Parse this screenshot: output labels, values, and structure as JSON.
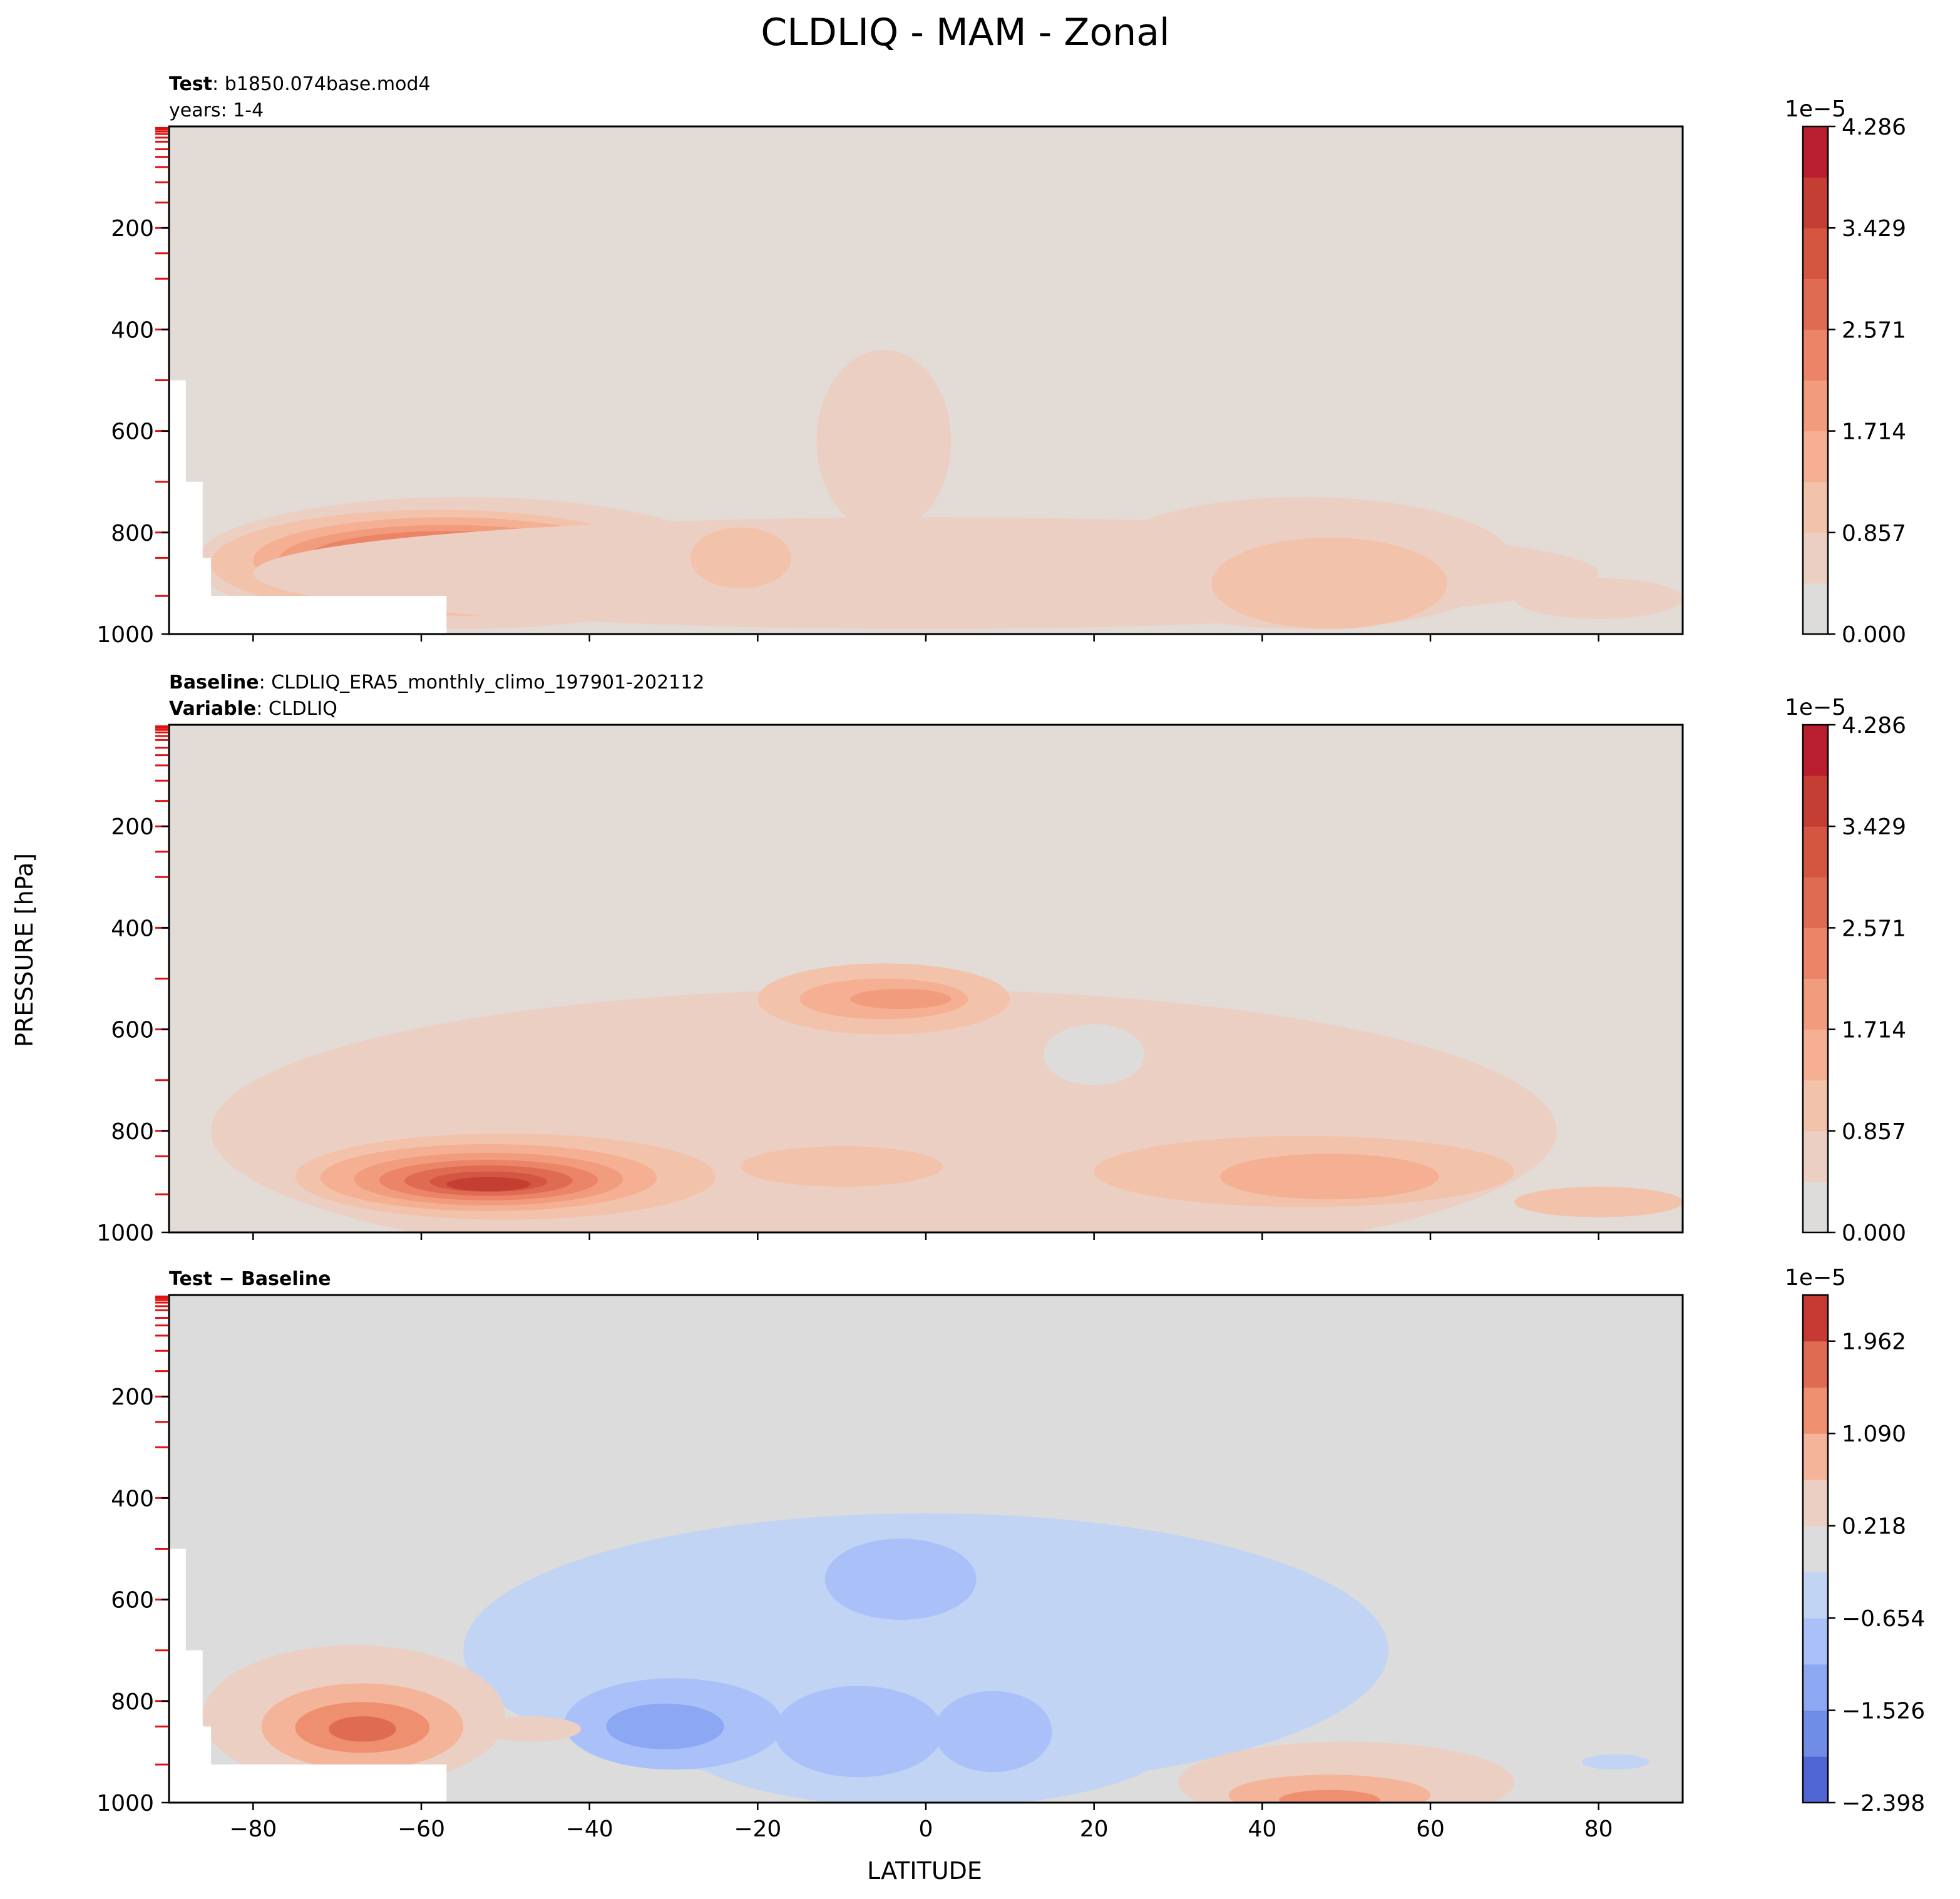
{
  "figure": {
    "suptitle": "CLDLIQ - MAM - Zonal",
    "ylabel": "PRESSURE [hPa]",
    "xlabel": "LATITUDE"
  },
  "chart_data": [
    {
      "type": "contour",
      "panel": "test",
      "subtitle_lines": [
        {
          "bold": "Test",
          "sep": ": ",
          "text": "b1850.074base.mod4"
        },
        {
          "bold": "",
          "sep": "",
          "text": "years: 1-4"
        }
      ],
      "xlim": [
        -90,
        90
      ],
      "ylim": [
        1000,
        0
      ],
      "xticks": [
        -80,
        -60,
        -40,
        -20,
        0,
        20,
        40,
        60,
        80
      ],
      "yticks": [
        200,
        400,
        600,
        800,
        1000
      ],
      "show_xtick_labels": false,
      "colorbar": {
        "multiplier": "1e−5",
        "levels": 12,
        "ticks": [
          "0.000",
          "0.857",
          "1.714",
          "2.571",
          "3.429",
          "4.286"
        ],
        "colors": [
          "#dedcda",
          "#eccfc3",
          "#f3c2ab",
          "#f5b094",
          "#f29c7e",
          "#ec8467",
          "#e06b53",
          "#d45540",
          "#c43e33",
          "#b81e2e"
        ]
      },
      "background": "#e2dbd6",
      "missing_region": [
        [
          -90,
          500
        ],
        [
          -88,
          500
        ],
        [
          -88,
          700
        ],
        [
          -86,
          700
        ],
        [
          -86,
          850
        ],
        [
          -85,
          850
        ],
        [
          -85,
          925
        ],
        [
          -57,
          925
        ],
        [
          -57,
          1000
        ],
        [
          -90,
          1000
        ]
      ],
      "blobs": [
        {
          "lat": -55,
          "p": 860,
          "dlat": 32,
          "dp": 130,
          "level": 1
        },
        {
          "lat": -58,
          "p": 860,
          "dlat": 27,
          "dp": 105,
          "level": 2
        },
        {
          "lat": -57,
          "p": 855,
          "dlat": 23,
          "dp": 85,
          "level": 3
        },
        {
          "lat": -57,
          "p": 855,
          "dlat": 20,
          "dp": 70,
          "level": 4
        },
        {
          "lat": -57,
          "p": 855,
          "dlat": 17,
          "dp": 58,
          "level": 5
        },
        {
          "lat": -57,
          "p": 855,
          "dlat": 14,
          "dp": 46,
          "level": 6
        },
        {
          "lat": -56,
          "p": 855,
          "dlat": 11,
          "dp": 34,
          "level": 7
        },
        {
          "lat": -56,
          "p": 855,
          "dlat": 8,
          "dp": 24,
          "level": 8
        },
        {
          "lat": -64,
          "p": 852,
          "dlat": 3,
          "dp": 16,
          "level": 9
        },
        {
          "lat": -50,
          "p": 850,
          "dlat": 2,
          "dp": 10,
          "level": 9
        },
        {
          "lat": -5,
          "p": 620,
          "dlat": 8,
          "dp": 180,
          "level": 1
        },
        {
          "lat": 0,
          "p": 880,
          "dlat": 80,
          "dp": 110,
          "level": 1
        },
        {
          "lat": -22,
          "p": 850,
          "dlat": 6,
          "dp": 60,
          "level": 2
        },
        {
          "lat": 45,
          "p": 860,
          "dlat": 25,
          "dp": 130,
          "level": 1
        },
        {
          "lat": 48,
          "p": 900,
          "dlat": 14,
          "dp": 90,
          "level": 2
        },
        {
          "lat": 80,
          "p": 930,
          "dlat": 10,
          "dp": 40,
          "level": 1
        }
      ]
    },
    {
      "type": "contour",
      "panel": "baseline",
      "subtitle_lines": [
        {
          "bold": "Baseline",
          "sep": ": ",
          "text": "CLDLIQ_ERA5_monthly_climo_197901-202112"
        },
        {
          "bold": "Variable",
          "sep": ": ",
          "text": "CLDLIQ"
        }
      ],
      "xlim": [
        -90,
        90
      ],
      "ylim": [
        1000,
        0
      ],
      "xticks": [
        -80,
        -60,
        -40,
        -20,
        0,
        20,
        40,
        60,
        80
      ],
      "yticks": [
        200,
        400,
        600,
        800,
        1000
      ],
      "show_xtick_labels": false,
      "colorbar": {
        "multiplier": "1e−5",
        "levels": 12,
        "ticks": [
          "0.000",
          "0.857",
          "1.714",
          "2.571",
          "3.429",
          "4.286"
        ],
        "colors": [
          "#dedcda",
          "#eccfc3",
          "#f3c2ab",
          "#f5b094",
          "#f29c7e",
          "#ec8467",
          "#e06b53",
          "#d45540",
          "#c43e33",
          "#b81e2e"
        ]
      },
      "background": "#e2dbd6",
      "missing_region": [],
      "blobs": [
        {
          "lat": -5,
          "p": 800,
          "dlat": 80,
          "dp": 280,
          "level": 1
        },
        {
          "lat": 20,
          "p": 650,
          "dlat": 6,
          "dp": 60,
          "level": 0
        },
        {
          "lat": -35,
          "p": 890,
          "dlat": 30,
          "dp": 110,
          "level": 1
        },
        {
          "lat": -50,
          "p": 890,
          "dlat": 25,
          "dp": 85,
          "level": 2
        },
        {
          "lat": -52,
          "p": 892,
          "dlat": 20,
          "dp": 66,
          "level": 3
        },
        {
          "lat": -52,
          "p": 895,
          "dlat": 16,
          "dp": 52,
          "level": 4
        },
        {
          "lat": -52,
          "p": 897,
          "dlat": 13,
          "dp": 40,
          "level": 5
        },
        {
          "lat": -52,
          "p": 898,
          "dlat": 10,
          "dp": 30,
          "level": 6
        },
        {
          "lat": -52,
          "p": 900,
          "dlat": 7,
          "dp": 20,
          "level": 7
        },
        {
          "lat": -52,
          "p": 905,
          "dlat": 5,
          "dp": 14,
          "level": 8
        },
        {
          "lat": -5,
          "p": 540,
          "dlat": 15,
          "dp": 70,
          "level": 2
        },
        {
          "lat": -5,
          "p": 540,
          "dlat": 10,
          "dp": 40,
          "level": 3
        },
        {
          "lat": -3,
          "p": 540,
          "dlat": 6,
          "dp": 20,
          "level": 4
        },
        {
          "lat": -10,
          "p": 870,
          "dlat": 12,
          "dp": 40,
          "level": 2
        },
        {
          "lat": 45,
          "p": 880,
          "dlat": 25,
          "dp": 70,
          "level": 2
        },
        {
          "lat": 48,
          "p": 890,
          "dlat": 13,
          "dp": 45,
          "level": 3
        },
        {
          "lat": 80,
          "p": 940,
          "dlat": 10,
          "dp": 30,
          "level": 2
        }
      ]
    },
    {
      "type": "contour",
      "panel": "difference",
      "subtitle_lines": [
        {
          "bold": "Test − Baseline",
          "sep": "",
          "text": ""
        }
      ],
      "xlim": [
        -90,
        90
      ],
      "ylim": [
        1000,
        0
      ],
      "xticks": [
        -80,
        -60,
        -40,
        -20,
        0,
        20,
        40,
        60,
        80
      ],
      "yticks": [
        200,
        400,
        600,
        800,
        1000
      ],
      "show_xtick_labels": true,
      "colorbar": {
        "multiplier": "1e−5",
        "levels": 12,
        "ticks": [
          "−2.398",
          "−1.526",
          "−0.654",
          "0.218",
          "1.090",
          "1.962"
        ],
        "colors": [
          "#4f66d4",
          "#6f8ce6",
          "#8ca8f2",
          "#a9c1f8",
          "#c1d4f4",
          "#dcdcdc",
          "#eccfc3",
          "#f4b49a",
          "#ee8f70",
          "#e06b53",
          "#c73a34"
        ]
      },
      "background": "#dcdcdc",
      "missing_region": [
        [
          -90,
          500
        ],
        [
          -88,
          500
        ],
        [
          -88,
          700
        ],
        [
          -86,
          700
        ],
        [
          -86,
          850
        ],
        [
          -85,
          850
        ],
        [
          -85,
          925
        ],
        [
          -57,
          925
        ],
        [
          -57,
          1000
        ],
        [
          -90,
          1000
        ]
      ],
      "blobs": [
        {
          "lat": 0,
          "p": 700,
          "dlat": 55,
          "dp": 270,
          "level": 4
        },
        {
          "lat": 0,
          "p": 870,
          "dlat": 30,
          "dp": 140,
          "level": 4
        },
        {
          "lat": -3,
          "p": 560,
          "dlat": 9,
          "dp": 80,
          "level": 3
        },
        {
          "lat": -30,
          "p": 845,
          "dlat": 13,
          "dp": 90,
          "level": 3
        },
        {
          "lat": -31,
          "p": 850,
          "dlat": 7,
          "dp": 45,
          "level": 2
        },
        {
          "lat": -8,
          "p": 860,
          "dlat": 10,
          "dp": 90,
          "level": 3
        },
        {
          "lat": 8,
          "p": 860,
          "dlat": 7,
          "dp": 80,
          "level": 3
        },
        {
          "lat": -68,
          "p": 830,
          "dlat": 18,
          "dp": 140,
          "level": 6
        },
        {
          "lat": -67,
          "p": 850,
          "dlat": 12,
          "dp": 85,
          "level": 7
        },
        {
          "lat": -67,
          "p": 852,
          "dlat": 8,
          "dp": 50,
          "level": 8
        },
        {
          "lat": -67,
          "p": 855,
          "dlat": 4,
          "dp": 25,
          "level": 9
        },
        {
          "lat": -47,
          "p": 855,
          "dlat": 6,
          "dp": 25,
          "level": 6
        },
        {
          "lat": 50,
          "p": 960,
          "dlat": 20,
          "dp": 80,
          "level": 6
        },
        {
          "lat": 48,
          "p": 985,
          "dlat": 12,
          "dp": 40,
          "level": 7
        },
        {
          "lat": 48,
          "p": 995,
          "dlat": 6,
          "dp": 20,
          "level": 8
        },
        {
          "lat": 82,
          "p": 920,
          "dlat": 4,
          "dp": 15,
          "level": 4
        }
      ]
    }
  ]
}
